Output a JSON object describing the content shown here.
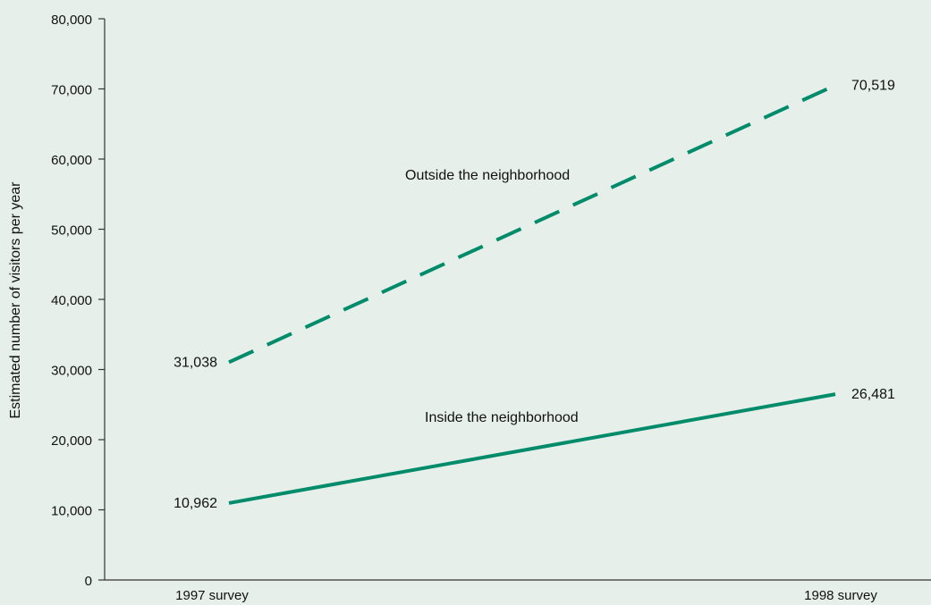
{
  "chart_data": {
    "type": "line",
    "categories": [
      "1997 survey",
      "1998 survey"
    ],
    "ylabel": "Estimated number of visitors per year",
    "ylim": [
      0,
      80000
    ],
    "yticks": [
      0,
      10000,
      20000,
      30000,
      40000,
      50000,
      60000,
      70000,
      80000
    ],
    "ytick_labels": [
      "0",
      "10,000",
      "20,000",
      "30,000",
      "40,000",
      "50,000",
      "60,000",
      "70,000",
      "80,000"
    ],
    "grid": false,
    "line_color": "#008c6a",
    "series": [
      {
        "name": "Outside the neighborhood",
        "style": "dashed",
        "values": [
          31038,
          70519
        ],
        "value_labels": [
          "31,038",
          "70,519"
        ]
      },
      {
        "name": "Inside the neighborhood",
        "style": "solid",
        "values": [
          10962,
          26481
        ],
        "value_labels": [
          "10,962",
          "26,481"
        ]
      }
    ]
  }
}
